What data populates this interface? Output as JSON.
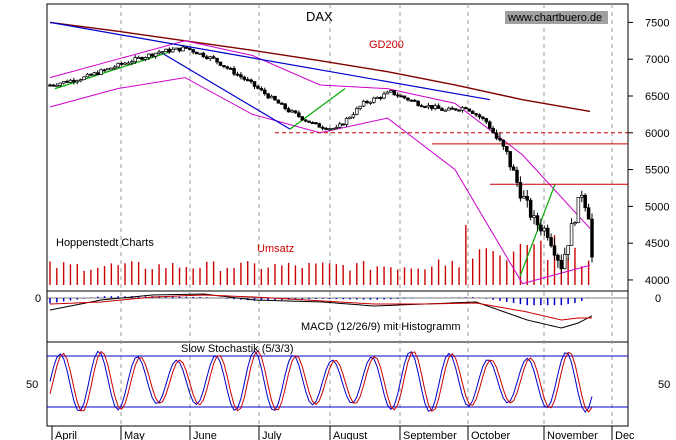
{
  "chart_data": {
    "type": "line",
    "title": "DAX",
    "watermark": "www.chartbuero.de",
    "source_label": "Hoppenstedt Charts",
    "volume_label": "Umsatz",
    "gd200_label": "GD200",
    "macd_label": "MACD (12/26/9) mit Histogramm",
    "stoch_label": "Slow Stochastik (5/3/3)",
    "price_ticks": [
      "7500",
      "7000",
      "6500",
      "6000",
      "5500",
      "5000",
      "4500",
      "4000"
    ],
    "price_tick_values": [
      7500,
      7000,
      6500,
      6000,
      5500,
      5000,
      4500,
      4000
    ],
    "macd_ticks": [
      "0"
    ],
    "stoch_ticks": [
      "50"
    ],
    "months": [
      "April",
      "May",
      "June",
      "July",
      "August",
      "September",
      "October",
      "November",
      "Dec"
    ],
    "ylim": [
      3850,
      7750
    ],
    "colors": {
      "candle": "#000000",
      "bollinger": "#cc00cc",
      "gd200": "#800000",
      "trend": "#0000cc",
      "support": "#00aa00",
      "resistance": "#cc0000",
      "volume": "#cc0000",
      "macd_hist": "#0000cc",
      "grid": "#999999"
    },
    "gd200": [
      7500,
      7380,
      7250,
      7120,
      6980,
      6830,
      6650,
      6450,
      6290
    ],
    "bollinger_upper": [
      6750,
      7000,
      7250,
      7050,
      6650,
      6600,
      6400,
      5700,
      4700
    ],
    "bollinger_lower": [
      6350,
      6600,
      6750,
      6250,
      6000,
      6200,
      5500,
      3950,
      4200
    ],
    "resistance_levels": [
      6000,
      5850,
      5300
    ],
    "macd_signal": "MACD line and signal cross below zero, histogram turns positive in November",
    "series": [
      {
        "name": "DAX",
        "x": [
          "Apr",
          "May",
          "Jun",
          "Jul",
          "Aug",
          "Sep",
          "Oct",
          "Nov"
        ],
        "values": [
          6800,
          7150,
          6700,
          6000,
          6450,
          6250,
          4100,
          4350
        ]
      }
    ]
  }
}
